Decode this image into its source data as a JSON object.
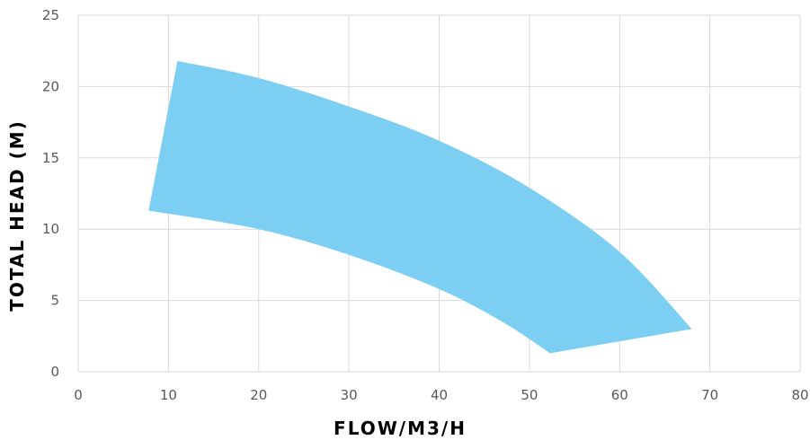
{
  "chart_data": {
    "type": "area",
    "title": "",
    "xlabel": "FLOW/M3/H",
    "ylabel": "TOTAL HEAD (M)",
    "xlim": [
      0,
      80
    ],
    "ylim": [
      0,
      25
    ],
    "x_ticks": [
      0,
      10,
      20,
      30,
      40,
      50,
      60,
      70,
      80
    ],
    "y_ticks": [
      0,
      5,
      10,
      15,
      20,
      25
    ],
    "grid": true,
    "legend": "none",
    "fill_color": "#7ccff2",
    "region": {
      "upper_curve": [
        {
          "x": 11,
          "y": 21.8
        },
        {
          "x": 20,
          "y": 20.6
        },
        {
          "x": 30,
          "y": 18.6
        },
        {
          "x": 40,
          "y": 16.2
        },
        {
          "x": 50,
          "y": 12.9
        },
        {
          "x": 60,
          "y": 8.4
        },
        {
          "x": 68,
          "y": 3.0
        }
      ],
      "lower_curve": [
        {
          "x": 7.8,
          "y": 11.3
        },
        {
          "x": 20,
          "y": 10.0
        },
        {
          "x": 30,
          "y": 8.2
        },
        {
          "x": 40,
          "y": 5.8
        },
        {
          "x": 47,
          "y": 3.5
        },
        {
          "x": 52.3,
          "y": 1.3
        }
      ],
      "right_edge": [
        {
          "x": 52.3,
          "y": 1.3
        },
        {
          "x": 68,
          "y": 3.0
        }
      ]
    }
  }
}
